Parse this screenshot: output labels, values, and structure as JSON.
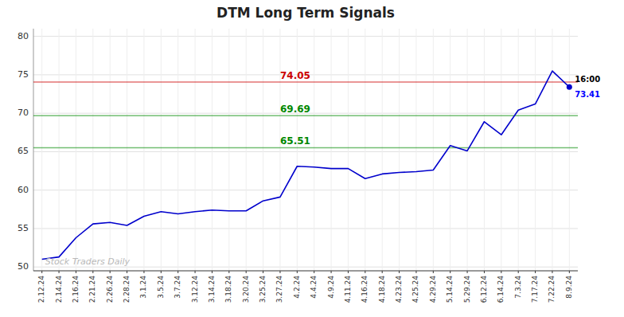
{
  "chart_data": {
    "type": "line",
    "title": "DTM Long Term Signals",
    "categories": [
      "2.12.24",
      "2.14.24",
      "2.16.24",
      "2.21.24",
      "2.26.24",
      "2.28.24",
      "3.1.24",
      "3.5.24",
      "3.7.24",
      "3.12.24",
      "3.14.24",
      "3.18.24",
      "3.20.24",
      "3.25.24",
      "3.27.24",
      "4.2.24",
      "4.4.24",
      "4.9.24",
      "4.11.24",
      "4.16.24",
      "4.18.24",
      "4.23.24",
      "4.25.24",
      "4.29.24",
      "5.14.24",
      "5.29.24",
      "6.12.24",
      "6.14.24",
      "7.3.24",
      "7.17.24",
      "7.22.24",
      "8.9.24"
    ],
    "values": [
      51.0,
      51.3,
      53.8,
      55.6,
      55.8,
      55.4,
      56.6,
      57.2,
      56.9,
      57.2,
      57.4,
      57.3,
      57.3,
      58.6,
      59.1,
      63.1,
      63.0,
      62.8,
      62.8,
      61.5,
      62.1,
      62.3,
      62.4,
      62.6,
      65.8,
      65.1,
      68.9,
      67.2,
      70.4,
      71.2,
      75.5,
      73.41
    ],
    "color": "#0000cc",
    "ylim": [
      49.5,
      81
    ],
    "yticks": [
      50,
      55,
      60,
      65,
      70,
      75,
      80
    ],
    "grid": true,
    "hlines": [
      {
        "value": 74.05,
        "label": "74.05",
        "color": "#cc0000"
      },
      {
        "value": 69.69,
        "label": "69.69",
        "color": "#008800"
      },
      {
        "value": 65.51,
        "label": "65.51",
        "color": "#008800"
      }
    ],
    "annotations": [
      {
        "text": "16:00"
      },
      {
        "text": "73.41",
        "value": 73.41
      },
      {
        "text": "Stock Traders Daily"
      }
    ]
  }
}
